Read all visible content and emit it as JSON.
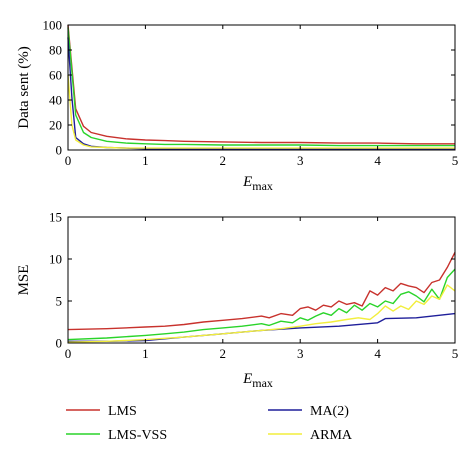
{
  "colors": {
    "LMS": "#c8322d",
    "LMS-VSS": "#2ad42a",
    "MA(2)": "#1f1f9a",
    "ARMA": "#f2ee3c",
    "axes": "#000000"
  },
  "legend": {
    "placement": "bottom",
    "items": [
      {
        "label": "LMS",
        "color_key": "LMS"
      },
      {
        "label": "MA(2)",
        "color_key": "MA(2)"
      },
      {
        "label": "LMS-VSS",
        "color_key": "LMS-VSS"
      },
      {
        "label": "ARMA",
        "color_key": "ARMA"
      }
    ]
  },
  "chart_data": [
    {
      "type": "line",
      "title": "",
      "xlabel": "E",
      "xlabel_sub": "max",
      "ylabel": "Data sent (%)",
      "xlim": [
        0,
        5
      ],
      "ylim": [
        0,
        100
      ],
      "xticks": [
        0,
        1,
        2,
        3,
        4,
        5
      ],
      "yticks": [
        0,
        20,
        40,
        60,
        80,
        100
      ],
      "grid": false,
      "series": [
        {
          "name": "LMS",
          "color_key": "LMS",
          "x": [
            0,
            0.1,
            0.2,
            0.3,
            0.5,
            0.75,
            1,
            1.25,
            1.5,
            2,
            2.5,
            3,
            3.5,
            4,
            4.5,
            5
          ],
          "y": [
            100,
            33,
            19,
            14,
            11,
            9,
            8,
            7.5,
            7,
            6.5,
            6,
            6,
            5.5,
            5.5,
            5,
            5
          ]
        },
        {
          "name": "LMS-VSS",
          "color_key": "LMS-VSS",
          "x": [
            0,
            0.1,
            0.2,
            0.3,
            0.5,
            0.75,
            1,
            1.25,
            1.5,
            2,
            2.5,
            3,
            3.5,
            4,
            4.5,
            5
          ],
          "y": [
            98,
            28,
            14,
            10,
            7,
            5.5,
            5,
            4.5,
            4.5,
            4,
            4,
            4,
            3.5,
            3.5,
            3.5,
            3.5
          ]
        },
        {
          "name": "MA(2)",
          "color_key": "MA(2)",
          "x": [
            0,
            0.05,
            0.1,
            0.2,
            0.3,
            0.5,
            0.75,
            1,
            1.5,
            2,
            2.5,
            3,
            3.5,
            4,
            4.5,
            5
          ],
          "y": [
            90,
            42,
            10,
            5,
            3,
            2,
            1.5,
            1,
            1,
            1,
            1,
            1,
            1,
            1,
            1,
            1
          ]
        },
        {
          "name": "ARMA",
          "color_key": "ARMA",
          "x": [
            0,
            0.05,
            0.1,
            0.2,
            0.3,
            0.5,
            0.75,
            1,
            1.5,
            2,
            2.5,
            3,
            3.5,
            4,
            4.5,
            5
          ],
          "y": [
            60,
            20,
            8,
            4,
            2.5,
            2,
            1.5,
            1.5,
            1.5,
            1.5,
            1.5,
            1.5,
            1.5,
            1.5,
            1.5,
            1.5
          ]
        }
      ]
    },
    {
      "type": "line",
      "title": "",
      "xlabel": "E",
      "xlabel_sub": "max",
      "ylabel": "MSE",
      "xlim": [
        0,
        5
      ],
      "ylim": [
        0,
        15
      ],
      "xticks": [
        0,
        1,
        2,
        3,
        4,
        5
      ],
      "yticks": [
        0,
        5,
        10,
        15
      ],
      "grid": false,
      "series": [
        {
          "name": "LMS",
          "color_key": "LMS",
          "x": [
            0,
            0.5,
            1,
            1.25,
            1.5,
            1.75,
            2,
            2.25,
            2.5,
            2.6,
            2.75,
            2.9,
            3,
            3.1,
            3.2,
            3.3,
            3.4,
            3.5,
            3.6,
            3.7,
            3.8,
            3.9,
            4,
            4.1,
            4.2,
            4.3,
            4.4,
            4.5,
            4.6,
            4.7,
            4.8,
            4.9,
            5
          ],
          "y": [
            1.6,
            1.7,
            1.9,
            2.0,
            2.2,
            2.5,
            2.7,
            2.9,
            3.2,
            3.0,
            3.5,
            3.3,
            4.1,
            4.3,
            3.9,
            4.5,
            4.3,
            5.0,
            4.6,
            4.8,
            4.4,
            6.2,
            5.7,
            6.6,
            6.2,
            7.1,
            6.8,
            6.6,
            6.0,
            7.2,
            7.5,
            9.0,
            10.8
          ]
        },
        {
          "name": "LMS-VSS",
          "color_key": "LMS-VSS",
          "x": [
            0,
            0.5,
            1,
            1.25,
            1.5,
            1.75,
            2,
            2.25,
            2.5,
            2.6,
            2.75,
            2.9,
            3,
            3.1,
            3.2,
            3.3,
            3.4,
            3.5,
            3.6,
            3.7,
            3.8,
            3.9,
            4,
            4.1,
            4.2,
            4.3,
            4.4,
            4.5,
            4.6,
            4.7,
            4.8,
            4.9,
            5
          ],
          "y": [
            0.4,
            0.6,
            0.9,
            1.1,
            1.3,
            1.6,
            1.8,
            2.0,
            2.3,
            2.1,
            2.6,
            2.4,
            3.0,
            2.7,
            3.2,
            3.6,
            3.3,
            4.1,
            3.6,
            4.5,
            3.9,
            4.7,
            4.3,
            5.0,
            4.7,
            5.8,
            6.1,
            5.6,
            4.9,
            6.4,
            5.2,
            7.8,
            8.8
          ]
        },
        {
          "name": "MA(2)",
          "color_key": "MA(2)",
          "x": [
            0,
            0.5,
            1,
            1.5,
            2,
            2.5,
            3,
            3.5,
            4,
            4.1,
            4.5,
            5
          ],
          "y": [
            0.2,
            0.2,
            0.3,
            0.7,
            1.1,
            1.5,
            1.8,
            2.0,
            2.4,
            2.9,
            3.0,
            3.5
          ]
        },
        {
          "name": "ARMA",
          "color_key": "ARMA",
          "x": [
            0,
            0.5,
            1,
            1.5,
            2,
            2.5,
            2.75,
            3,
            3.2,
            3.4,
            3.6,
            3.75,
            3.9,
            4,
            4.1,
            4.2,
            4.3,
            4.4,
            4.5,
            4.6,
            4.7,
            4.8,
            4.9,
            5
          ],
          "y": [
            0.1,
            0.2,
            0.4,
            0.7,
            1.1,
            1.5,
            1.7,
            2.0,
            2.3,
            2.5,
            2.8,
            3.0,
            2.8,
            3.5,
            4.4,
            3.8,
            4.4,
            4.0,
            5.0,
            4.6,
            5.6,
            5.2,
            6.9,
            6.2
          ]
        }
      ]
    }
  ]
}
